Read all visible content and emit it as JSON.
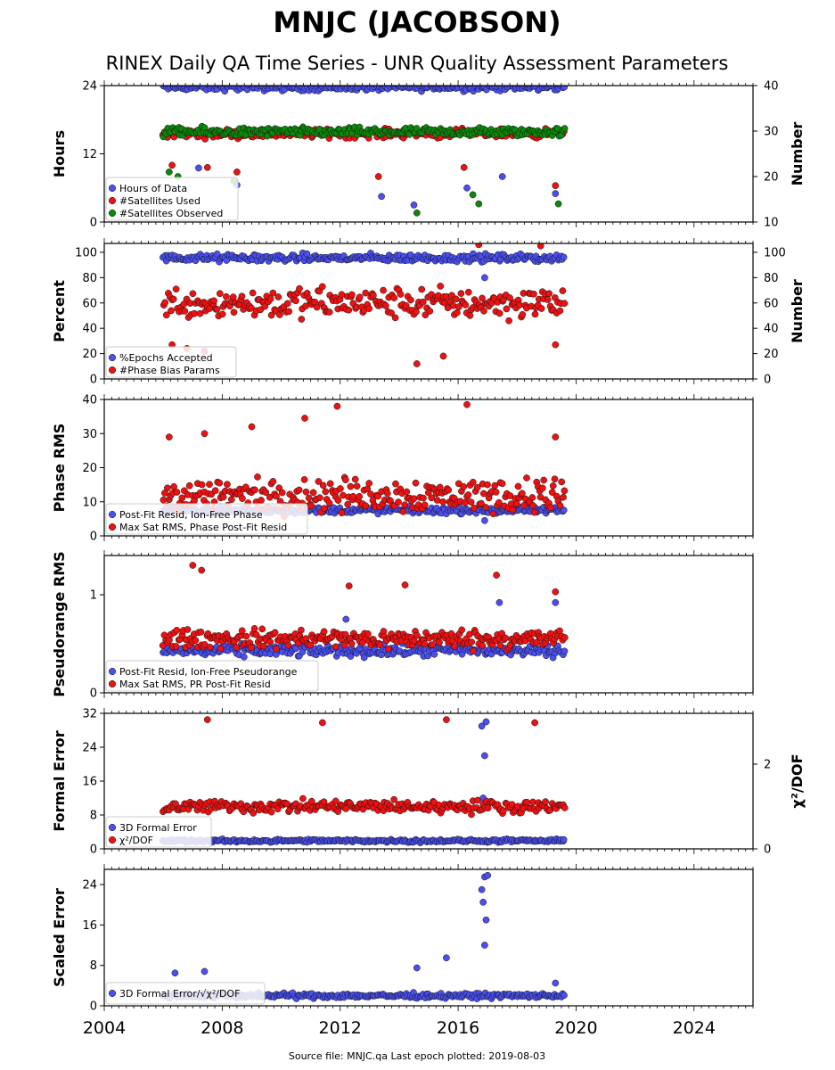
{
  "title": "MNJC (JACOBSON)",
  "subtitle": "RINEX Daily QA Time Series - UNR Quality Assessment Parameters",
  "footer": "Source file: MNJC.qa Last epoch plotted: 2019-08-03",
  "colors": {
    "blue": "#4a4ff0",
    "red": "#ee1111",
    "green": "#0a8a0a"
  },
  "x_axis": {
    "min": 2004,
    "max": 2026,
    "ticks": [
      "2004",
      "2008",
      "2012",
      "2016",
      "2020",
      "2024"
    ]
  },
  "chart_data": [
    {
      "type": "scatter",
      "id": "hours",
      "ylabel": "Hours",
      "ylabel_right": "Number",
      "ylim": [
        0,
        24
      ],
      "ylim_right": [
        10,
        40
      ],
      "yticks": [
        "0",
        "12",
        "24"
      ],
      "yticks_right": [
        "10",
        "20",
        "30",
        "40"
      ],
      "legend": [
        "Hours of Data",
        "#Satellites Used",
        "#Satellites Observed"
      ],
      "series": [
        {
          "name": "Hours of Data",
          "axis": "left",
          "x_range": [
            2006.0,
            2019.6
          ],
          "typical": 23.7,
          "spread": 0.5,
          "outliers": [
            [
              2006.3,
              16.5
            ],
            [
              2007.2,
              9.5
            ],
            [
              2008.5,
              6.5
            ],
            [
              2010.7,
              15.5
            ],
            [
              2013.4,
              4.5
            ],
            [
              2014.5,
              3.0
            ],
            [
              2016.3,
              6.0
            ],
            [
              2017.5,
              8.0
            ],
            [
              2019.3,
              5.0
            ]
          ]
        },
        {
          "name": "#Satellites Used",
          "axis": "right",
          "x_range": [
            2006.0,
            2019.6
          ],
          "typical": 29.5,
          "spread": 0.8,
          "outliers": [
            [
              2006.3,
              22.5
            ],
            [
              2007.5,
              22.0
            ],
            [
              2008.5,
              21.0
            ],
            [
              2013.3,
              20.0
            ],
            [
              2016.2,
              22.0
            ],
            [
              2019.3,
              18.0
            ]
          ]
        },
        {
          "name": "#Satellites Observed",
          "axis": "right",
          "x_range": [
            2006.0,
            2019.6
          ],
          "typical": 29.8,
          "spread": 0.8,
          "outliers": [
            [
              2006.2,
              21.0
            ],
            [
              2006.5,
              20.0
            ],
            [
              2008.4,
              19.0
            ],
            [
              2014.6,
              12.0
            ],
            [
              2016.5,
              16.0
            ],
            [
              2016.7,
              14.0
            ],
            [
              2019.4,
              14.0
            ]
          ]
        }
      ]
    },
    {
      "type": "scatter",
      "id": "percent",
      "ylabel": "Percent",
      "ylabel_right": "Number",
      "ylim": [
        0,
        107
      ],
      "ylim_right": [
        0,
        107
      ],
      "yticks": [
        "0",
        "20",
        "40",
        "60",
        "80",
        "100"
      ],
      "yticks_right": [
        "0",
        "20",
        "40",
        "60",
        "80",
        "100"
      ],
      "legend": [
        "%Epochs Accepted",
        "#Phase Bias Params"
      ],
      "series": [
        {
          "name": "%Epochs Accepted",
          "axis": "left",
          "x_range": [
            2006.0,
            2019.6
          ],
          "typical": 95.5,
          "spread": 2.5,
          "outliers": [
            [
              2016.9,
              80.0
            ]
          ]
        },
        {
          "name": "#Phase Bias Params",
          "axis": "right",
          "x_range": [
            2006.0,
            2019.6
          ],
          "typical": 60.0,
          "spread": 10.0,
          "outliers": [
            [
              2006.3,
              27.0
            ],
            [
              2006.8,
              24.0
            ],
            [
              2007.4,
              22.0
            ],
            [
              2014.6,
              12.0
            ],
            [
              2015.5,
              18.0
            ],
            [
              2016.7,
              106.0
            ],
            [
              2018.8,
              105.0
            ],
            [
              2019.3,
              27.0
            ]
          ]
        }
      ]
    },
    {
      "type": "scatter",
      "id": "phase",
      "ylabel": "Phase RMS",
      "ylim": [
        0,
        40
      ],
      "yticks": [
        "0",
        "10",
        "20",
        "30",
        "40"
      ],
      "legend": [
        "Post-Fit Resid, Ion-Free Phase",
        "Max Sat RMS, Phase Post-Fit Resid"
      ],
      "series": [
        {
          "name": "Post-Fit Resid, Ion-Free Phase",
          "axis": "left",
          "x_range": [
            2006.0,
            2019.6
          ],
          "typical": 7.5,
          "spread": 0.8,
          "outliers": [
            [
              2016.9,
              4.5
            ]
          ]
        },
        {
          "name": "Max Sat RMS, Phase Post-Fit Resid",
          "axis": "left",
          "x_range": [
            2006.0,
            2019.6
          ],
          "typical": 12.0,
          "spread": 4.0,
          "outliers": [
            [
              2006.2,
              29.0
            ],
            [
              2007.4,
              30.0
            ],
            [
              2009.0,
              32.0
            ],
            [
              2010.8,
              34.5
            ],
            [
              2011.9,
              38.0
            ],
            [
              2016.3,
              38.5
            ],
            [
              2019.3,
              29.0
            ]
          ]
        }
      ]
    },
    {
      "type": "scatter",
      "id": "pseudorange",
      "ylabel": "Pseudorange RMS",
      "ylim": [
        0,
        1.4
      ],
      "yticks": [
        "0",
        "1"
      ],
      "legend": [
        "Post-Fit Resid, Ion-Free Pseudorange",
        "Max Sat RMS, PR Post-Fit Resid"
      ],
      "series": [
        {
          "name": "Post-Fit Resid, Ion-Free Pseudorange",
          "axis": "left",
          "x_range": [
            2006.0,
            2019.6
          ],
          "typical": 0.43,
          "spread": 0.05,
          "outliers": [
            [
              2012.2,
              0.75
            ],
            [
              2017.4,
              0.92
            ],
            [
              2019.3,
              0.92
            ]
          ]
        },
        {
          "name": "Max Sat RMS, PR Post-Fit Resid",
          "axis": "left",
          "x_range": [
            2006.0,
            2019.6
          ],
          "typical": 0.55,
          "spread": 0.08,
          "outliers": [
            [
              2007.0,
              1.3
            ],
            [
              2007.3,
              1.25
            ],
            [
              2012.3,
              1.09
            ],
            [
              2014.2,
              1.1
            ],
            [
              2017.3,
              1.2
            ],
            [
              2019.3,
              1.03
            ]
          ]
        }
      ]
    },
    {
      "type": "scatter",
      "id": "formal",
      "ylabel": "Formal Error",
      "ylabel_right": "χ²/DOF",
      "ylim": [
        0,
        32
      ],
      "ylim_right": [
        0,
        3.2
      ],
      "yticks": [
        "0",
        "8",
        "16",
        "24",
        "32"
      ],
      "yticks_right": [
        "0",
        "2"
      ],
      "legend": [
        "3D Formal Error",
        "χ²/DOF"
      ],
      "series": [
        {
          "name": "3D Formal Error",
          "axis": "left",
          "x_range": [
            2006.0,
            2019.6
          ],
          "typical": 1.9,
          "spread": 0.3,
          "outliers": [
            [
              2016.8,
              29.0
            ],
            [
              2016.95,
              30.0
            ],
            [
              2016.9,
              22.0
            ],
            [
              2016.85,
              12.0
            ]
          ]
        },
        {
          "name": "χ²/DOF",
          "axis": "right",
          "x_range": [
            2006.0,
            2019.6
          ],
          "typical": 1.0,
          "spread": 0.12,
          "outliers": [
            [
              2007.5,
              3.05
            ],
            [
              2011.4,
              2.98
            ],
            [
              2015.6,
              3.05
            ],
            [
              2018.6,
              2.98
            ]
          ]
        }
      ]
    },
    {
      "type": "scatter",
      "id": "scaled",
      "ylabel": "Scaled Error",
      "ylim": [
        0,
        27
      ],
      "yticks": [
        "0",
        "8",
        "16",
        "24"
      ],
      "legend": [
        "3D Formal Error/√χ²/DOF"
      ],
      "series": [
        {
          "name": "3D Formal Error/√χ²/DOF",
          "axis": "left",
          "x_range": [
            2006.0,
            2019.6
          ],
          "typical": 2.0,
          "spread": 0.4,
          "outliers": [
            [
              2006.4,
              6.5
            ],
            [
              2007.4,
              6.8
            ],
            [
              2014.6,
              7.5
            ],
            [
              2015.6,
              9.5
            ],
            [
              2016.8,
              23.0
            ],
            [
              2016.9,
              25.5
            ],
            [
              2017.0,
              25.8
            ],
            [
              2016.85,
              20.5
            ],
            [
              2016.95,
              17.0
            ],
            [
              2016.9,
              12.0
            ],
            [
              2019.3,
              4.5
            ]
          ]
        }
      ]
    }
  ]
}
